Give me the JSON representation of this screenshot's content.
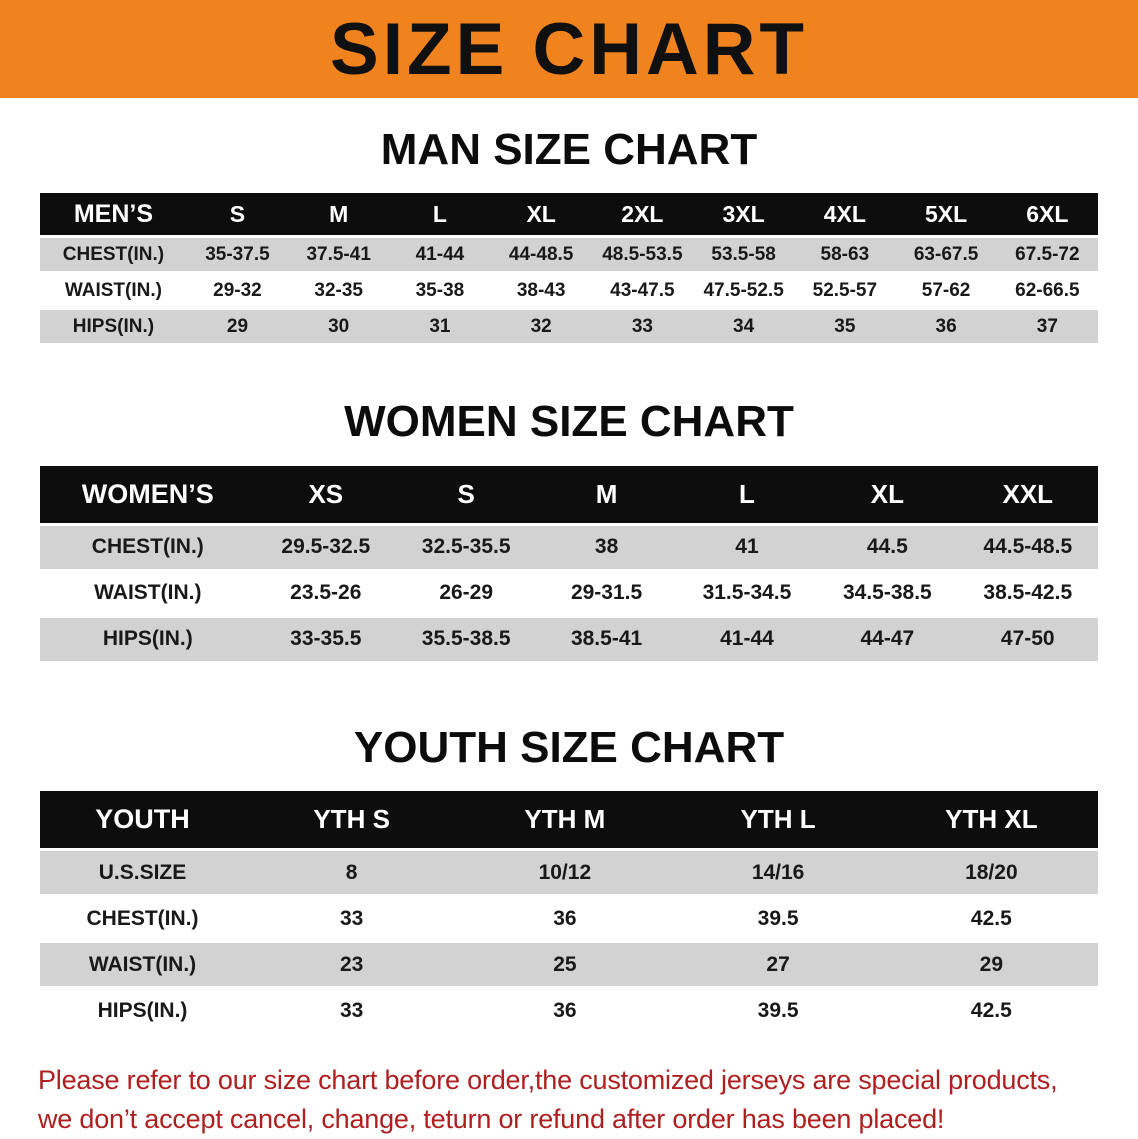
{
  "banner": {
    "title": "SIZE CHART"
  },
  "colors": {
    "banner_orange": "#f0831e",
    "table_header_bg": "#0d0d0d",
    "row_shade_gray": "#d2d2d2",
    "disclaimer_red": "#b01f1f"
  },
  "sections": [
    {
      "id": "men",
      "heading": "MAN SIZE CHART",
      "table": {
        "header": [
          "MEN’S",
          "S",
          "M",
          "L",
          "XL",
          "2XL",
          "3XL",
          "4XL",
          "5XL",
          "6XL"
        ],
        "rows": [
          [
            "CHEST(IN.)",
            "35-37.5",
            "37.5-41",
            "41-44",
            "44-48.5",
            "48.5-53.5",
            "53.5-58",
            "58-63",
            "63-67.5",
            "67.5-72"
          ],
          [
            "WAIST(IN.)",
            "29-32",
            "32-35",
            "35-38",
            "38-43",
            "43-47.5",
            "47.5-52.5",
            "52.5-57",
            "57-62",
            "62-66.5"
          ],
          [
            "HIPS(IN.)",
            "29",
            "30",
            "31",
            "32",
            "33",
            "34",
            "35",
            "36",
            "37"
          ]
        ]
      }
    },
    {
      "id": "women",
      "heading": "WOMEN SIZE CHART",
      "table": {
        "header": [
          "WOMEN’S",
          "XS",
          "S",
          "M",
          "L",
          "XL",
          "XXL"
        ],
        "rows": [
          [
            "CHEST(IN.)",
            "29.5-32.5",
            "32.5-35.5",
            "38",
            "41",
            "44.5",
            "44.5-48.5"
          ],
          [
            "WAIST(IN.)",
            "23.5-26",
            "26-29",
            "29-31.5",
            "31.5-34.5",
            "34.5-38.5",
            "38.5-42.5"
          ],
          [
            "HIPS(IN.)",
            "33-35.5",
            "35.5-38.5",
            "38.5-41",
            "41-44",
            "44-47",
            "47-50"
          ]
        ]
      }
    },
    {
      "id": "youth",
      "heading": "YOUTH SIZE CHART",
      "table": {
        "header": [
          "YOUTH",
          "YTH S",
          "YTH M",
          "YTH L",
          "YTH XL"
        ],
        "rows": [
          [
            "U.S.SIZE",
            "8",
            "10/12",
            "14/16",
            "18/20"
          ],
          [
            "CHEST(IN.)",
            "33",
            "36",
            "39.5",
            "42.5"
          ],
          [
            "WAIST(IN.)",
            "23",
            "25",
            "27",
            "29"
          ],
          [
            "HIPS(IN.)",
            "33",
            "36",
            "39.5",
            "42.5"
          ]
        ]
      }
    }
  ],
  "disclaimer": {
    "line1": "Please refer to our size chart before order,the customized jerseys are special products,",
    "line2": "we don’t accept cancel, change, teturn or refund after order has been placed!"
  }
}
